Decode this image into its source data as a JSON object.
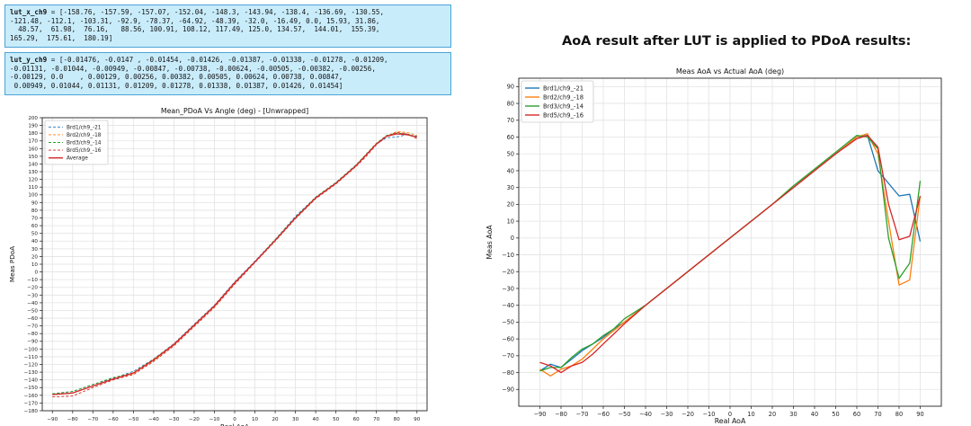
{
  "lut_x": {
    "name": "lut_x_ch9",
    "lines": [
      " = [-158.76, -157.59, -157.07, -152.04, -148.3, -143.94, -138.4, -136.69, -130.55,",
      "-121.48, -112.1, -103.31, -92.9, -78.37, -64.92, -48.39, -32.0, -16.49, 0.0, 15.93, 31.86,",
      "  48.57,  61.98,  76.16,   88.56, 100.91, 108.12, 117.49, 125.0, 134.57,  144.01,  155.39,",
      "165.29,  175.61,  180.19]"
    ]
  },
  "lut_y": {
    "name": "lut_y_ch9",
    "lines": [
      " = [-0.01476, -0.0147 , -0.01454, -0.01426, -0.01387, -0.01338, -0.01278, -0.01209,",
      "-0.01131, -0.01044, -0.00949, -0.00847, -0.00738, -0.00624, -0.00505, -0.00382, -0.00256,",
      "-0.00129, 0.0    , 0.00129, 0.00256, 0.00382, 0.00505, 0.00624, 0.00738, 0.00847,",
      " 0.00949, 0.01044, 0.01131, 0.01209, 0.01278, 0.01338, 0.01387, 0.01426, 0.01454]"
    ]
  },
  "section_title": "AoA result after LUT is applied to PDoA results:",
  "colors": {
    "blue": "#1f77b4",
    "orange": "#ff7f0e",
    "green": "#2ca02c",
    "red": "#d62728"
  },
  "chart_data": [
    {
      "type": "line",
      "title": "Mean_PDoA Vs Angle (deg)  - [Unwrapped]",
      "xlabel": "Real AoA",
      "ylabel": "Meas PDoA",
      "xlim": [
        -95,
        95
      ],
      "ylim": [
        -180,
        200
      ],
      "xticks": [
        -90,
        -80,
        -70,
        -60,
        -50,
        -40,
        -30,
        -20,
        -10,
        0,
        10,
        20,
        30,
        40,
        50,
        60,
        70,
        80,
        90
      ],
      "ytick_step": 10,
      "grid": true,
      "legend": "top-left",
      "x": [
        -90,
        -80,
        -70,
        -60,
        -50,
        -40,
        -30,
        -20,
        -10,
        0,
        10,
        20,
        30,
        40,
        50,
        60,
        65,
        70,
        75,
        80,
        85,
        90
      ],
      "series": [
        {
          "name": "Brd1/ch9_-21",
          "color": "#1f77b4",
          "dashed": true,
          "values": [
            -158,
            -155,
            -146,
            -138,
            -129,
            -113,
            -93,
            -68,
            -43,
            -13,
            14,
            42,
            72,
            97,
            116,
            139,
            152,
            166,
            174,
            175,
            178,
            176
          ]
        },
        {
          "name": "Brd2/ch9_-18",
          "color": "#ff7f0e",
          "dashed": true,
          "values": [
            -159,
            -157,
            -148,
            -139,
            -132,
            -115,
            -95,
            -70,
            -45,
            -15,
            13,
            41,
            70,
            96,
            115,
            138,
            152,
            166,
            176,
            182,
            181,
            177
          ]
        },
        {
          "name": "Brd3/ch9_-14",
          "color": "#2ca02c",
          "dashed": true,
          "values": [
            -158,
            -155,
            -146,
            -137,
            -131,
            -113,
            -94,
            -69,
            -44,
            -14,
            13,
            42,
            71,
            97,
            116,
            139,
            153,
            167,
            177,
            180,
            179,
            175
          ]
        },
        {
          "name": "Brd5/ch9_-16",
          "color": "#d62728",
          "dashed": true,
          "values": [
            -162,
            -161,
            -150,
            -140,
            -133,
            -116,
            -96,
            -71,
            -46,
            -16,
            12,
            40,
            69,
            95,
            114,
            137,
            150,
            165,
            176,
            181,
            179,
            173
          ]
        },
        {
          "name": "Average",
          "color": "#d62728",
          "dashed": false,
          "values": [
            -159,
            -157,
            -148,
            -139,
            -131,
            -114,
            -94,
            -69,
            -44,
            -14,
            13,
            41,
            70,
            96,
            115,
            138,
            152,
            166,
            176,
            179,
            178,
            175
          ]
        }
      ]
    },
    {
      "type": "line",
      "title": "Meas AoA vs Actual AoA (deg)",
      "xlabel": "Real AoA",
      "ylabel": "Meas AoA",
      "xlim": [
        -100,
        100
      ],
      "ylim": [
        -100,
        95
      ],
      "xticks": [
        -90,
        -80,
        -70,
        -60,
        -50,
        -40,
        -30,
        -20,
        -10,
        0,
        10,
        20,
        30,
        40,
        50,
        60,
        70,
        80,
        90
      ],
      "ytick_step": 10,
      "ytick_min": -90,
      "ytick_max": 90,
      "grid": true,
      "legend": "top-left",
      "series": [
        {
          "name": "Brd1/ch9_-21",
          "color": "#1f77b4",
          "points": [
            [
              -90,
              -79
            ],
            [
              -85,
              -75
            ],
            [
              -80,
              -77
            ],
            [
              -75,
              -72
            ],
            [
              -70,
              -67
            ],
            [
              -65,
              -63
            ],
            [
              -60,
              -59
            ],
            [
              -55,
              -54
            ],
            [
              -50,
              -50
            ],
            [
              -40,
              -40
            ],
            [
              -30,
              -30
            ],
            [
              -20,
              -20
            ],
            [
              -10,
              -10
            ],
            [
              0,
              0
            ],
            [
              10,
              10
            ],
            [
              20,
              20
            ],
            [
              30,
              30
            ],
            [
              40,
              40
            ],
            [
              50,
              50
            ],
            [
              60,
              60
            ],
            [
              65,
              61
            ],
            [
              70,
              40
            ],
            [
              80,
              25
            ],
            [
              85,
              26
            ],
            [
              90,
              -2
            ]
          ]
        },
        {
          "name": "Brd2/ch9_-18",
          "color": "#ff7f0e",
          "points": [
            [
              -90,
              -78
            ],
            [
              -85,
              -82
            ],
            [
              -80,
              -78
            ],
            [
              -75,
              -76
            ],
            [
              -70,
              -72
            ],
            [
              -65,
              -66
            ],
            [
              -60,
              -60
            ],
            [
              -55,
              -55
            ],
            [
              -50,
              -50
            ],
            [
              -40,
              -40
            ],
            [
              -30,
              -30
            ],
            [
              -20,
              -20
            ],
            [
              -10,
              -10
            ],
            [
              0,
              0
            ],
            [
              10,
              10
            ],
            [
              20,
              20
            ],
            [
              30,
              30
            ],
            [
              40,
              40
            ],
            [
              50,
              50
            ],
            [
              60,
              60
            ],
            [
              65,
              62
            ],
            [
              70,
              50
            ],
            [
              75,
              10
            ],
            [
              80,
              -28
            ],
            [
              85,
              -25
            ],
            [
              90,
              25
            ]
          ]
        },
        {
          "name": "Brd3/ch9_-14",
          "color": "#2ca02c",
          "points": [
            [
              -90,
              -79
            ],
            [
              -85,
              -77
            ],
            [
              -80,
              -77
            ],
            [
              -75,
              -71
            ],
            [
              -70,
              -66
            ],
            [
              -65,
              -63
            ],
            [
              -60,
              -58
            ],
            [
              -55,
              -54
            ],
            [
              -50,
              -48
            ],
            [
              -40,
              -40
            ],
            [
              -30,
              -30
            ],
            [
              -20,
              -20
            ],
            [
              -10,
              -10
            ],
            [
              0,
              0
            ],
            [
              10,
              10
            ],
            [
              20,
              20
            ],
            [
              30,
              31
            ],
            [
              40,
              41
            ],
            [
              50,
              51
            ],
            [
              60,
              61
            ],
            [
              65,
              60
            ],
            [
              70,
              53
            ],
            [
              75,
              0
            ],
            [
              80,
              -24
            ],
            [
              85,
              -15
            ],
            [
              90,
              34
            ]
          ]
        },
        {
          "name": "Brd5/ch9_-16",
          "color": "#d62728",
          "points": [
            [
              -90,
              -74
            ],
            [
              -85,
              -76
            ],
            [
              -80,
              -80
            ],
            [
              -75,
              -76
            ],
            [
              -70,
              -74
            ],
            [
              -65,
              -69
            ],
            [
              -60,
              -63
            ],
            [
              -55,
              -57
            ],
            [
              -50,
              -51
            ],
            [
              -40,
              -40
            ],
            [
              -30,
              -30
            ],
            [
              -20,
              -20
            ],
            [
              -10,
              -10
            ],
            [
              0,
              0
            ],
            [
              10,
              10
            ],
            [
              20,
              20
            ],
            [
              30,
              30
            ],
            [
              40,
              40
            ],
            [
              50,
              50
            ],
            [
              60,
              59
            ],
            [
              65,
              61
            ],
            [
              70,
              54
            ],
            [
              75,
              20
            ],
            [
              80,
              -1
            ],
            [
              85,
              1
            ],
            [
              90,
              25
            ]
          ]
        }
      ]
    }
  ]
}
